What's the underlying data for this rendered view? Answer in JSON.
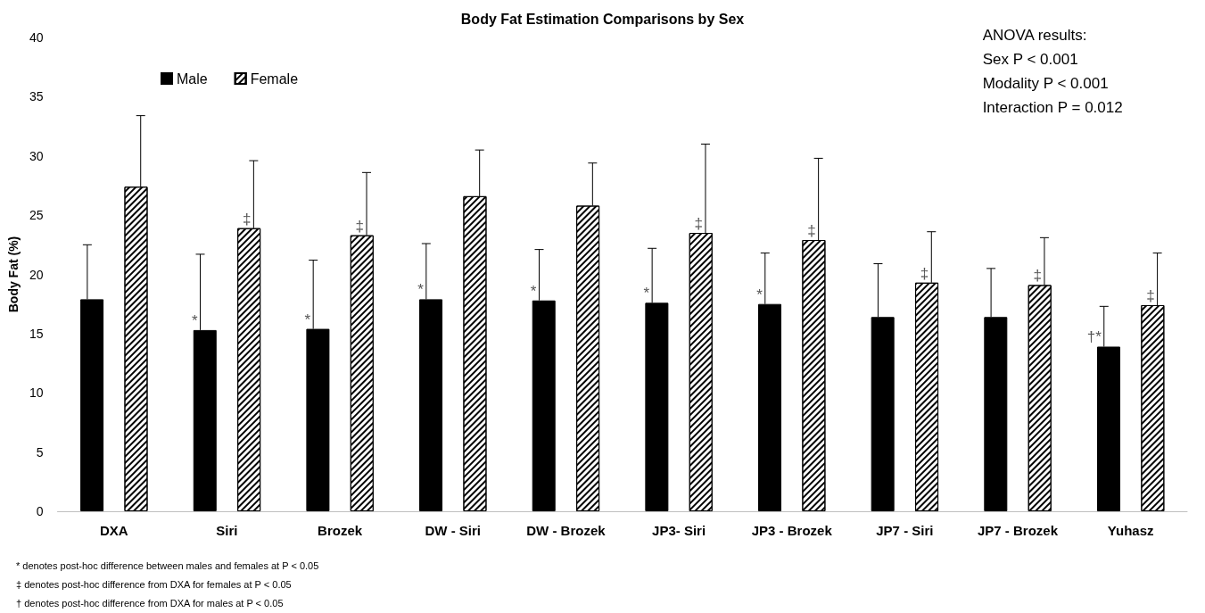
{
  "chart_data": {
    "type": "bar",
    "title": "Body Fat Estimation Comparisons by Sex",
    "ylabel": "Body Fat (%)",
    "categories": [
      "DXA",
      "Siri",
      "Brozek",
      "DW - Siri",
      "DW - Brozek",
      "JP3- Siri",
      "JP3 - Brozek",
      "JP7 - Siri",
      "JP7 - Brozek",
      "Yuhasz"
    ],
    "series": [
      {
        "name": "Male",
        "color": "#000000",
        "values": [
          17.9,
          15.3,
          15.4,
          17.9,
          17.8,
          17.6,
          17.5,
          16.4,
          16.4,
          13.9
        ],
        "errors": [
          [
            17.9,
            22.5
          ],
          [
            15.3,
            21.7
          ],
          [
            15.4,
            21.2
          ],
          [
            17.9,
            22.6
          ],
          [
            17.8,
            22.1
          ],
          [
            17.6,
            22.2
          ],
          [
            17.5,
            21.8
          ],
          [
            16.4,
            20.9
          ],
          [
            16.4,
            20.5
          ],
          [
            13.9,
            17.3
          ]
        ],
        "value_labels": [
          null,
          "*",
          "*",
          "*",
          "*",
          "*",
          "*",
          null,
          null,
          "†*"
        ]
      },
      {
        "name": "Female",
        "color": "#ffffff",
        "values": [
          27.4,
          23.9,
          23.3,
          26.6,
          25.8,
          23.5,
          22.9,
          19.3,
          19.1,
          17.4
        ],
        "errors": [
          [
            27.4,
            33.4
          ],
          [
            23.9,
            29.6
          ],
          [
            23.3,
            28.6
          ],
          [
            26.6,
            30.5
          ],
          [
            25.8,
            29.4
          ],
          [
            23.5,
            31.0
          ],
          [
            22.9,
            29.8
          ],
          [
            19.3,
            23.6
          ],
          [
            19.1,
            23.1
          ],
          [
            17.4,
            21.8
          ]
        ],
        "value_labels": [
          null,
          "‡",
          "‡",
          null,
          null,
          "‡",
          "‡",
          "‡",
          "‡",
          "‡"
        ]
      }
    ],
    "ylim": [
      0,
      40
    ],
    "yticks": [
      0,
      5,
      10,
      15,
      20,
      25,
      30,
      35,
      40
    ],
    "grid": false,
    "legend": "top left",
    "annotations": [
      "ANOVA results:\nSex P < 0.001\nModality P < 0.001\nInteraction P = 0.012",
      "* denotes post-hoc difference between males and females at P < 0.05",
      "‡ denotes post-hoc difference from DXA for females at P < 0.05",
      "† denotes post-hoc difference from DXA for males at P < 0.05"
    ]
  }
}
